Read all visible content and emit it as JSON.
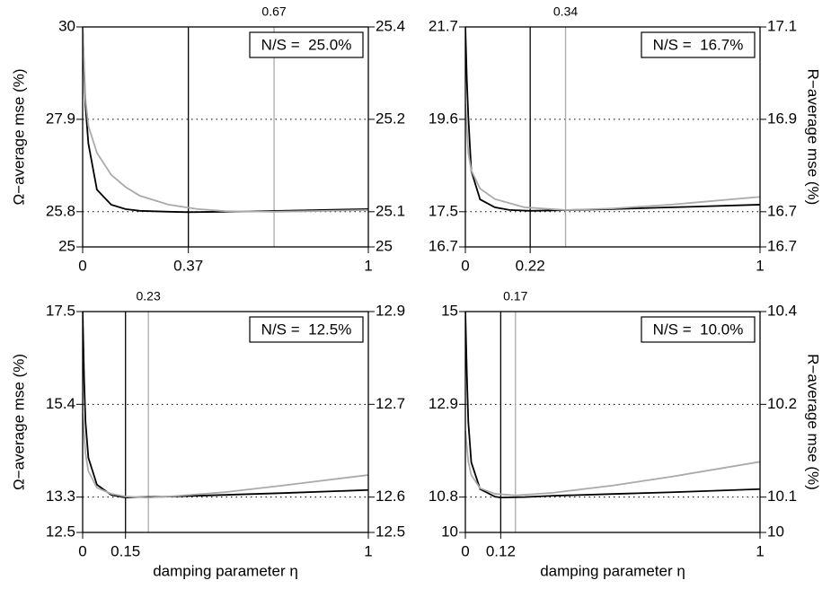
{
  "chart_data": [
    {
      "type": "line",
      "ylabel": "Ω−average mse (%)",
      "annotation": "N/S =  25.0%",
      "xlim": [
        0,
        1
      ],
      "xticks": [
        0,
        0.37,
        1
      ],
      "ylim": [
        25,
        30
      ],
      "yticks": [
        25,
        25.8,
        27.9,
        30
      ],
      "y2lim": [
        25,
        25.4
      ],
      "y2ticks": [
        25,
        {
          "value": 25.064,
          "label": "25.1"
        },
        {
          "value": 25.232,
          "label": "25.2"
        },
        25.4
      ],
      "grid": true,
      "series": [
        {
          "color": "#000000",
          "axis": "y",
          "argmin": 0.37,
          "x": [
            0,
            0.005,
            0.01,
            0.02,
            0.05,
            0.1,
            0.15,
            0.2,
            0.3,
            0.37,
            0.5,
            0.7,
            1
          ],
          "values": [
            30,
            29.0,
            28.2,
            27.35,
            26.3,
            25.96,
            25.86,
            25.82,
            25.8,
            25.79,
            25.8,
            25.82,
            25.86
          ]
        },
        {
          "color": "#aaaaaa",
          "axis": "y2",
          "argmin": 0.67,
          "x": [
            0,
            0.01,
            0.02,
            0.05,
            0.1,
            0.15,
            0.2,
            0.3,
            0.4,
            0.5,
            0.67,
            0.8,
            1
          ],
          "values": [
            25.4,
            25.269,
            25.22,
            25.171,
            25.131,
            25.109,
            25.093,
            25.077,
            25.069,
            25.065,
            25.064,
            25.065,
            25.067
          ]
        }
      ]
    },
    {
      "type": "line",
      "y2label": "R−average mse (%)",
      "annotation": "N/S =  16.7%",
      "xlim": [
        0,
        1
      ],
      "xticks": [
        0,
        0.22,
        1
      ],
      "ylim": [
        16.7,
        21.7
      ],
      "yticks": [
        16.7,
        17.5,
        19.6,
        21.7
      ],
      "y2lim": [
        16.66,
        17.06
      ],
      "y2ticks": [
        {
          "value": 16.66,
          "label": "16.7"
        },
        {
          "value": 16.724,
          "label": "16.7"
        },
        {
          "value": 16.892,
          "label": "16.9"
        },
        {
          "value": 17.06,
          "label": "17.1"
        }
      ],
      "grid": true,
      "series": [
        {
          "color": "#000000",
          "axis": "y",
          "argmin": 0.22,
          "x": [
            0,
            0.005,
            0.01,
            0.02,
            0.05,
            0.1,
            0.15,
            0.22,
            0.3,
            0.5,
            0.7,
            1
          ],
          "values": [
            21.7,
            20.5,
            19.66,
            18.43,
            17.78,
            17.6,
            17.54,
            17.52,
            17.53,
            17.56,
            17.6,
            17.66
          ]
        },
        {
          "color": "#aaaaaa",
          "axis": "y2",
          "argmin": 0.34,
          "x": [
            0,
            0.01,
            0.02,
            0.05,
            0.1,
            0.2,
            0.34,
            0.5,
            0.7,
            1
          ],
          "values": [
            16.921,
            16.831,
            16.799,
            16.766,
            16.747,
            16.732,
            16.727,
            16.73,
            16.737,
            16.751
          ]
        }
      ]
    },
    {
      "type": "line",
      "ylabel": "Ω−average mse (%)",
      "xlabel": "damping parameter η",
      "annotation": "N/S =  12.5%",
      "xlim": [
        0,
        1
      ],
      "xticks": [
        0,
        0.15,
        1
      ],
      "ylim": [
        12.5,
        17.5
      ],
      "yticks": [
        12.5,
        13.3,
        15.4,
        17.5
      ],
      "y2lim": [
        12.5,
        12.9
      ],
      "y2ticks": [
        12.5,
        {
          "value": 12.564,
          "label": "12.6"
        },
        {
          "value": 12.732,
          "label": "12.7"
        },
        12.9
      ],
      "grid": true,
      "series": [
        {
          "color": "#000000",
          "axis": "y",
          "argmin": 0.15,
          "x": [
            0,
            0.005,
            0.01,
            0.02,
            0.05,
            0.1,
            0.15,
            0.2,
            0.3,
            0.5,
            0.7,
            1
          ],
          "values": [
            17.5,
            16.0,
            15.0,
            14.19,
            13.58,
            13.35,
            13.29,
            13.3,
            13.31,
            13.35,
            13.39,
            13.46
          ]
        },
        {
          "color": "#aaaaaa",
          "axis": "y2",
          "argmin": 0.23,
          "x": [
            0,
            0.01,
            0.02,
            0.05,
            0.1,
            0.15,
            0.23,
            0.3,
            0.5,
            0.7,
            1
          ],
          "values": [
            12.716,
            12.643,
            12.611,
            12.581,
            12.57,
            12.565,
            12.563,
            12.565,
            12.573,
            12.585,
            12.604
          ]
        }
      ]
    },
    {
      "type": "line",
      "y2label": "R−average mse (%)",
      "xlabel": "damping parameter η",
      "annotation": "N/S =  10.0%",
      "xlim": [
        0,
        1
      ],
      "xticks": [
        0,
        0.12,
        1
      ],
      "ylim": [
        10,
        15
      ],
      "yticks": [
        10,
        10.8,
        12.9,
        15
      ],
      "y2lim": [
        10,
        10.4
      ],
      "y2ticks": [
        10,
        {
          "value": 10.064,
          "label": "10.1"
        },
        {
          "value": 10.232,
          "label": "10.2"
        },
        10.4
      ],
      "grid": true,
      "series": [
        {
          "color": "#000000",
          "axis": "y",
          "argmin": 0.12,
          "x": [
            0,
            0.005,
            0.01,
            0.02,
            0.05,
            0.1,
            0.12,
            0.2,
            0.3,
            0.5,
            0.7,
            1
          ],
          "values": [
            15,
            13.6,
            12.5,
            11.59,
            10.98,
            10.81,
            10.79,
            10.8,
            10.83,
            10.87,
            10.91,
            10.98
          ]
        },
        {
          "color": "#aaaaaa",
          "axis": "y2",
          "argmin": 0.17,
          "x": [
            0,
            0.01,
            0.02,
            0.05,
            0.1,
            0.17,
            0.3,
            0.5,
            0.7,
            1
          ],
          "values": [
            10.184,
            10.128,
            10.104,
            10.08,
            10.07,
            10.067,
            10.072,
            10.085,
            10.101,
            10.128
          ]
        }
      ]
    }
  ]
}
